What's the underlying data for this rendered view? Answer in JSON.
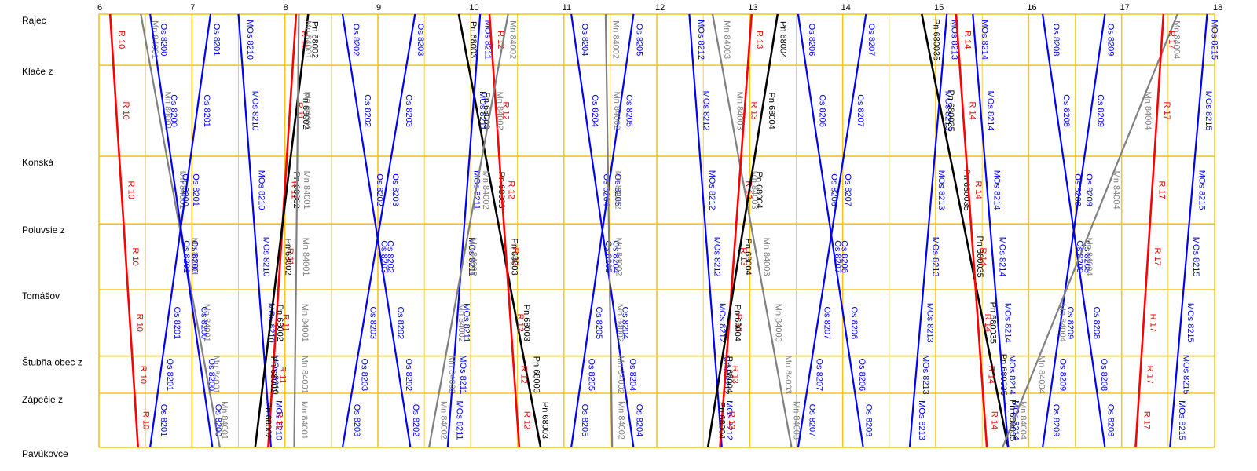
{
  "chart_data": {
    "type": "line",
    "title": "",
    "xlabel": "",
    "ylabel": "",
    "xlim": [
      6,
      18
    ],
    "hour_ticks": [
      "6",
      "7",
      "8",
      "9",
      "10",
      "11",
      "12",
      "13",
      "14",
      "15",
      "16",
      "17",
      "18"
    ],
    "stations": [
      {
        "name": "Rajec",
        "pos": 0
      },
      {
        "name": "Klače z",
        "pos": 0.118
      },
      {
        "name": "Konská",
        "pos": 0.328
      },
      {
        "name": "Poluvsie z",
        "pos": 0.484
      },
      {
        "name": "Tomášov",
        "pos": 0.636
      },
      {
        "name": "Štubňa obec z",
        "pos": 0.789
      },
      {
        "name": "Záреčie z",
        "pos": 0.875
      },
      {
        "name": "Pavúkovce",
        "pos": 1
      }
    ],
    "colors": {
      "grid": "#f5c518",
      "R": "#ff0000",
      "Os": "#0000ff",
      "MOs": "#0000ff",
      "Mn": "#808080",
      "Pn": "#000000"
    },
    "series": [
      {
        "name": "R 10",
        "kind": "R",
        "t0": 6.12,
        "t1": 6.42,
        "dir": "down"
      },
      {
        "name": "Mn 84001",
        "kind": "Mn",
        "t0": 6.45,
        "t1": 7.3,
        "dir": "down"
      },
      {
        "name": "Os 8200",
        "kind": "Os",
        "t0": 6.55,
        "t1": 7.22,
        "dir": "down"
      },
      {
        "name": "Os 8201",
        "kind": "Os",
        "t0": 6.55,
        "t1": 7.2,
        "dir": "up"
      },
      {
        "name": "MOs 8210",
        "kind": "MOs",
        "t0": 7.5,
        "t1": 7.85,
        "dir": "down"
      },
      {
        "name": "R 11",
        "kind": "R",
        "t0": 7.82,
        "t1": 8.12,
        "dir": "up"
      },
      {
        "name": "Pn 68002",
        "kind": "Pn",
        "t0": 7.68,
        "t1": 8.25,
        "dir": "up"
      },
      {
        "name": "Mn 84001",
        "kind": "Mn",
        "t0": 8.1,
        "t1": 8.15,
        "dir": "up"
      },
      {
        "name": "Os 8202",
        "kind": "Os",
        "t0": 8.62,
        "t1": 9.35,
        "dir": "down"
      },
      {
        "name": "Os 8203",
        "kind": "Os",
        "t0": 8.62,
        "t1": 9.4,
        "dir": "up"
      },
      {
        "name": "Pn 68003",
        "kind": "Pn",
        "t0": 9.87,
        "t1": 10.75,
        "dir": "down"
      },
      {
        "name": "MOs 8211",
        "kind": "MOs",
        "t0": 9.75,
        "t1": 10.1,
        "dir": "up"
      },
      {
        "name": "R 12",
        "kind": "R",
        "t0": 10.2,
        "t1": 10.52,
        "dir": "down"
      },
      {
        "name": "Mn 84002",
        "kind": "Mn",
        "t0": 9.55,
        "t1": 10.4,
        "dir": "up"
      },
      {
        "name": "Os 8204",
        "kind": "Os",
        "t0": 11.08,
        "t1": 11.75,
        "dir": "down"
      },
      {
        "name": "Os 8205",
        "kind": "Os",
        "t0": 11.08,
        "t1": 11.75,
        "dir": "up"
      },
      {
        "name": "Mn 84002",
        "kind": "Mn",
        "t0": 11.45,
        "t1": 11.52,
        "dir": "down"
      },
      {
        "name": "MOs 8212",
        "kind": "MOs",
        "t0": 12.35,
        "t1": 12.7,
        "dir": "down"
      },
      {
        "name": "Mn 84003",
        "kind": "Mn",
        "t0": 12.6,
        "t1": 13.45,
        "dir": "down"
      },
      {
        "name": "R 13",
        "kind": "R",
        "t0": 12.68,
        "t1": 13.02,
        "dir": "up"
      },
      {
        "name": "Pn 68004",
        "kind": "Pn",
        "t0": 12.55,
        "t1": 13.3,
        "dir": "up"
      },
      {
        "name": "Os 8206",
        "kind": "Os",
        "t0": 13.52,
        "t1": 14.22,
        "dir": "down"
      },
      {
        "name": "Os 8207",
        "kind": "Os",
        "t0": 13.52,
        "t1": 14.25,
        "dir": "up"
      },
      {
        "name": "MOs 8213",
        "kind": "MOs",
        "t0": 14.72,
        "t1": 15.12,
        "dir": "up"
      },
      {
        "name": "Pn 680035",
        "kind": "Pn",
        "t0": 14.85,
        "t1": 15.78,
        "dir": "down"
      },
      {
        "name": "R 14",
        "kind": "R",
        "t0": 15.22,
        "t1": 15.55,
        "dir": "down"
      },
      {
        "name": "MOs 8214",
        "kind": "MOs",
        "t0": 15.4,
        "t1": 15.78,
        "dir": "down"
      },
      {
        "name": "Os 8208",
        "kind": "Os",
        "t0": 16.15,
        "t1": 16.82,
        "dir": "down"
      },
      {
        "name": "Os 8209",
        "kind": "Os",
        "t0": 16.15,
        "t1": 16.82,
        "dir": "up"
      },
      {
        "name": "Mn 84004",
        "kind": "Mn",
        "t0": 15.72,
        "t1": 17.6,
        "dir": "up"
      },
      {
        "name": "R 17",
        "kind": "R",
        "t0": 17.15,
        "t1": 17.45,
        "dir": "up"
      },
      {
        "name": "MOs 8215",
        "kind": "MOs",
        "t0": 17.52,
        "t1": 17.92,
        "dir": "up"
      }
    ]
  }
}
